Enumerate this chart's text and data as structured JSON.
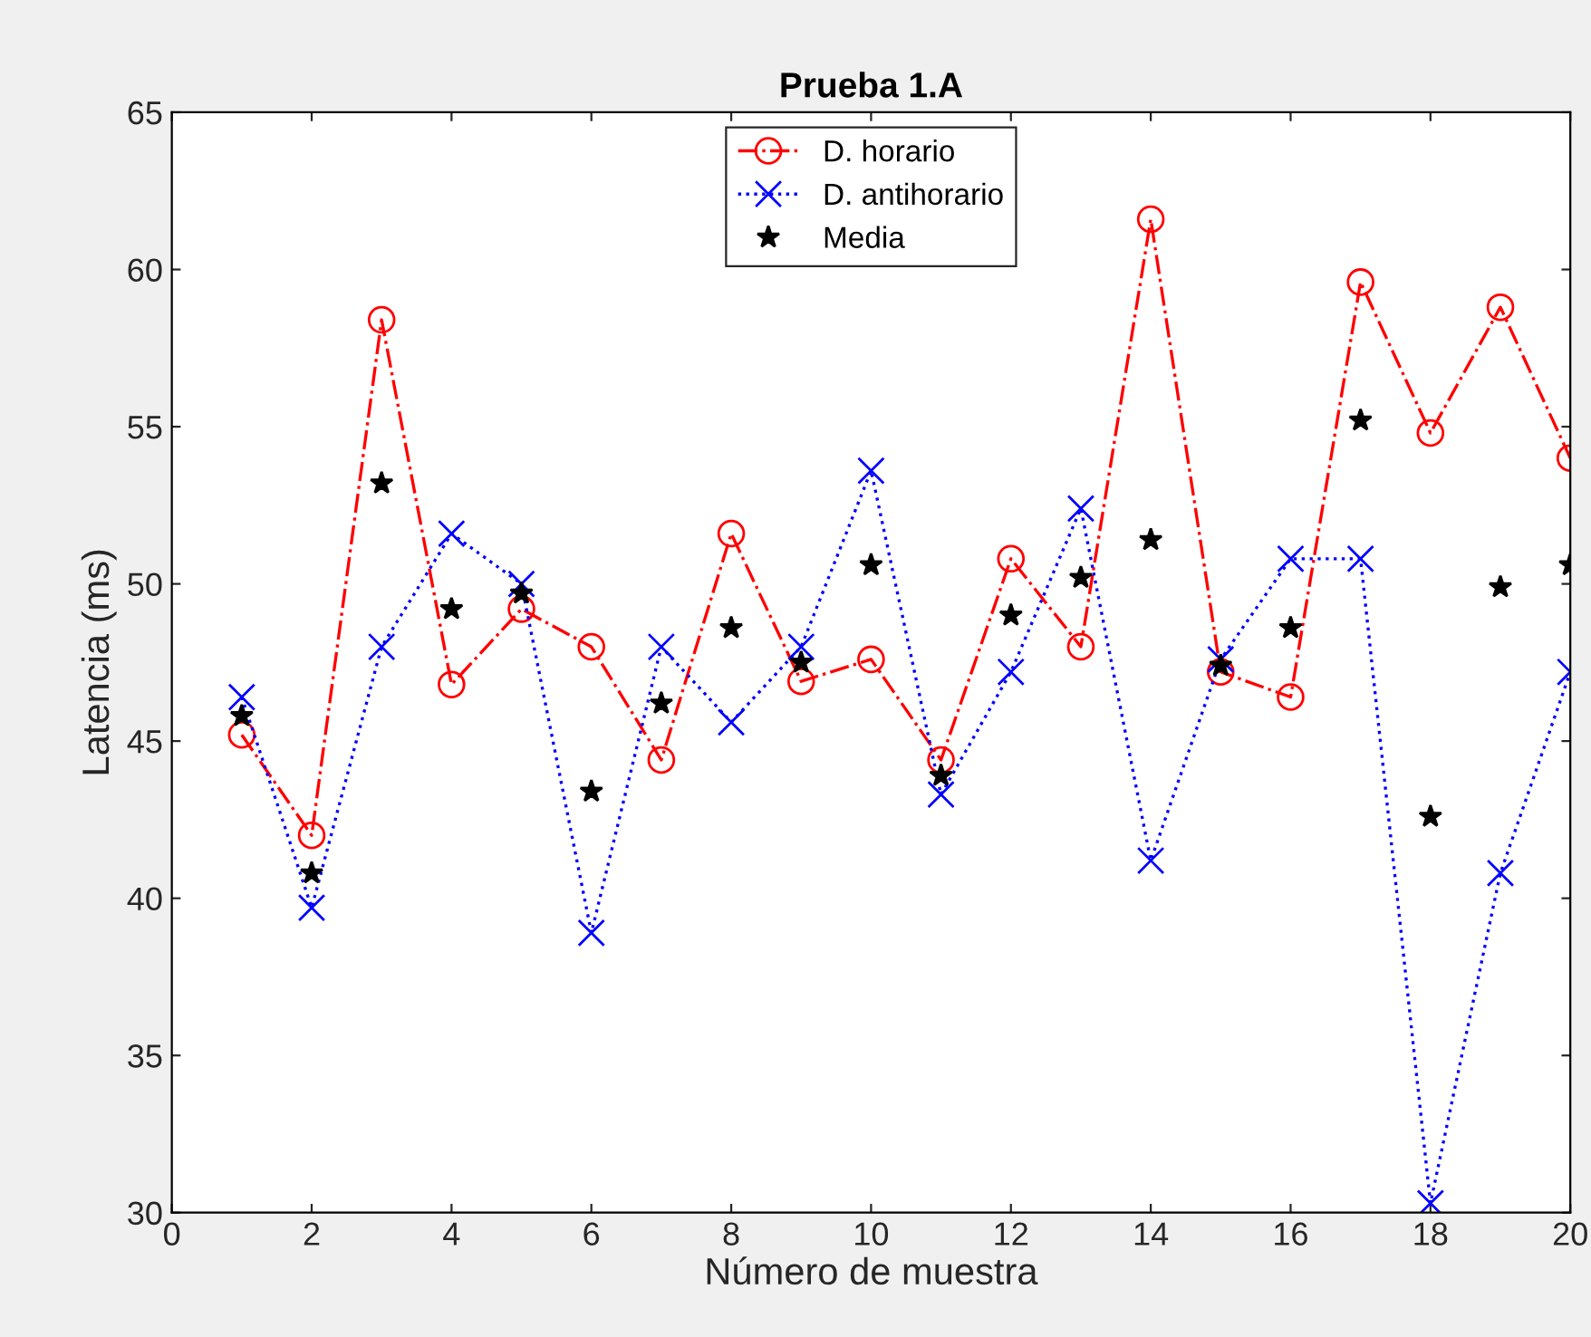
{
  "chart_data": {
    "type": "line",
    "title": "Prueba 1.A",
    "xlabel": "Número de muestra",
    "ylabel": "Latencia (ms)",
    "x": [
      1,
      2,
      3,
      4,
      5,
      6,
      7,
      8,
      9,
      10,
      11,
      12,
      13,
      14,
      15,
      16,
      17,
      18,
      19,
      20
    ],
    "series": [
      {
        "name": "D. horario",
        "color": "#ff0000",
        "marker": "circle",
        "line_style": "dashdot",
        "values": [
          45.2,
          42.0,
          58.4,
          46.8,
          49.2,
          48.0,
          44.4,
          51.6,
          46.9,
          47.6,
          44.4,
          50.8,
          48.0,
          61.6,
          47.2,
          46.4,
          59.6,
          54.8,
          58.8,
          54.0
        ]
      },
      {
        "name": "D. antihorario",
        "color": "#0000ff",
        "marker": "cross",
        "line_style": "dotted",
        "values": [
          46.4,
          39.7,
          48.0,
          51.6,
          50.0,
          38.9,
          48.0,
          45.6,
          48.0,
          53.6,
          43.3,
          47.2,
          52.4,
          41.2,
          47.6,
          50.8,
          50.8,
          30.3,
          40.8,
          47.2
        ]
      },
      {
        "name": "Media",
        "type": "scatter",
        "color": "#000000",
        "marker": "star",
        "values": [
          45.8,
          40.8,
          53.2,
          49.2,
          49.7,
          43.4,
          46.2,
          48.6,
          47.5,
          50.6,
          43.9,
          49.0,
          50.2,
          51.4,
          47.4,
          48.6,
          55.2,
          42.6,
          49.9,
          50.6
        ]
      }
    ],
    "xlim": [
      0,
      20
    ],
    "xticks": [
      0,
      2,
      4,
      6,
      8,
      10,
      12,
      14,
      16,
      18,
      20
    ],
    "ylim": [
      30,
      65
    ],
    "yticks": [
      30,
      35,
      40,
      45,
      50,
      55,
      60,
      65
    ],
    "grid": false,
    "legend": "top"
  }
}
